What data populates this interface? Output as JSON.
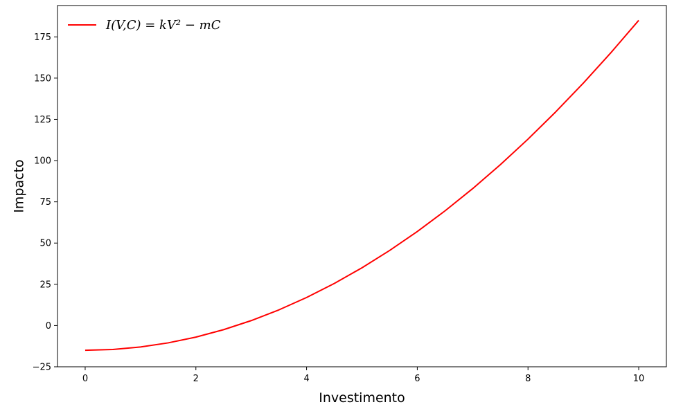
{
  "chart_data": {
    "type": "line",
    "xlabel": "Investimento",
    "ylabel": "Impacto",
    "xlim": [
      -0.5,
      10.5
    ],
    "ylim": [
      -25,
      194
    ],
    "xticks": [
      0,
      2,
      4,
      6,
      8,
      10
    ],
    "yticks": [
      -25,
      0,
      25,
      50,
      75,
      100,
      125,
      150,
      175
    ],
    "grid": false,
    "legend_position": "top-left",
    "series": [
      {
        "name": "I(V,C) = kV² − mC",
        "color": "#ff0000",
        "x": [
          0,
          0.5,
          1,
          1.5,
          2,
          2.5,
          3,
          3.5,
          4,
          4.5,
          5,
          5.5,
          6,
          6.5,
          7,
          7.5,
          8,
          8.5,
          9,
          9.5,
          10
        ],
        "y": [
          -15,
          -14.5,
          -13,
          -10.5,
          -7,
          -2.5,
          3,
          9.5,
          17,
          25.5,
          35,
          45.5,
          57,
          69.5,
          83,
          97.5,
          113,
          129.5,
          147,
          165.5,
          185
        ]
      }
    ]
  }
}
